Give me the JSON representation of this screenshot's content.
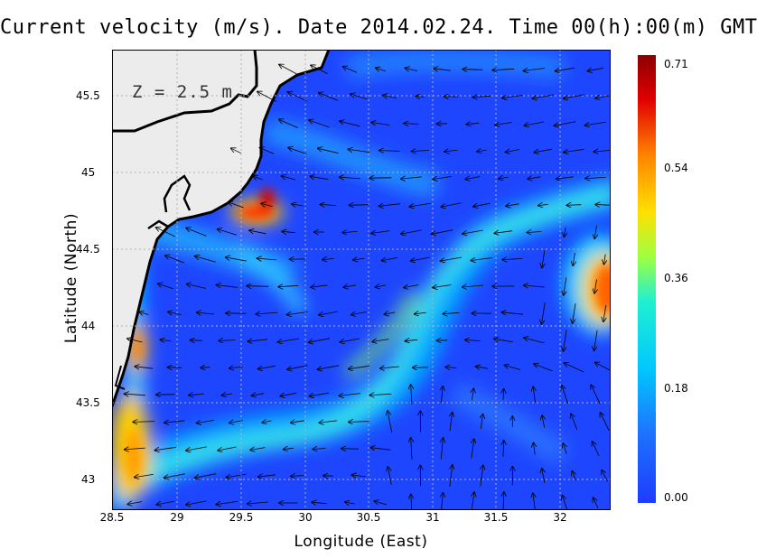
{
  "title": "Current velocity (m/s). Date 2014.02.24. Time 00(h):00(m) GMT",
  "depth_label": "Z = 2.5 m",
  "x_axis": {
    "label": "Longitude (East)",
    "range": [
      28.5,
      32.4
    ],
    "ticks": [
      "28.5",
      "29",
      "29.5",
      "30",
      "30.5",
      "31",
      "31.5",
      "32"
    ]
  },
  "y_axis": {
    "label": "Latitude (North)",
    "range": [
      42.8,
      45.8
    ],
    "ticks": [
      "43",
      "43.5",
      "44",
      "44.5",
      "45",
      "45.5"
    ]
  },
  "colorbar": {
    "ticks": [
      "0.71",
      "0.54",
      "0.36",
      "0.18",
      "0.00"
    ],
    "range": [
      0,
      0.71
    ]
  },
  "colors": {
    "low": "#1e3cff",
    "mid": "#00c8ff",
    "high": "#ffd800",
    "max": "#8b0000"
  },
  "grid": "dotted"
}
